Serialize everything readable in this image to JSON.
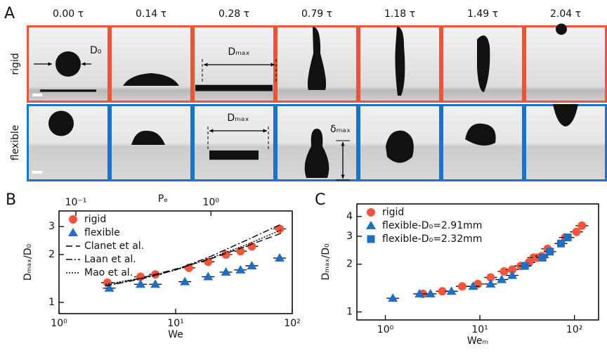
{
  "panel_a": {
    "label": "A",
    "times": [
      "0.00 τ",
      "0.14 τ",
      "0.28 τ",
      "0.79 τ",
      "1.18 τ",
      "1.49 τ",
      "2.04 τ"
    ],
    "rows": [
      "rigid",
      "flexible"
    ],
    "annotations": {
      "d0": "D₀",
      "dmax_rigid": "Dₘₐₓ",
      "dmax_flexible": "Dₘₐₓ",
      "delta_max": "δₘₐₓ"
    }
  },
  "chart_data": [
    {
      "type": "scatter",
      "panel_label": "B",
      "xlabel": "We",
      "x2label": "Pₑ",
      "ylabel": "Dₘₐₓ/D₀",
      "log_x": true,
      "log_y": true,
      "legend": "upper left",
      "xlim": [
        1,
        100
      ],
      "xticks": [
        {
          "value": 1,
          "label": "10⁰"
        },
        {
          "value": 10,
          "label": "10¹"
        },
        {
          "value": 100,
          "label": "10²"
        }
      ],
      "x2lim": [
        0.075,
        4.0
      ],
      "x2ticks": [
        {
          "value": 0.1,
          "label": "10⁻¹"
        },
        {
          "value": 1,
          "label": "10⁰"
        }
      ],
      "ylim": [
        0.85,
        3.76
      ],
      "yticks": [
        1,
        2,
        3
      ],
      "series": [
        {
          "name": "rigid",
          "color": "#f4553c",
          "marker": "circle",
          "x": [
            2.6,
            5,
            6.7,
            13,
            19,
            27,
            36,
            45,
            78
          ],
          "values": [
            1.33,
            1.45,
            1.5,
            1.65,
            1.8,
            2.0,
            2.1,
            2.25,
            2.9
          ]
        },
        {
          "name": "flexible",
          "color": "#1f6fc5",
          "marker": "triangle",
          "x": [
            2.7,
            5,
            6.7,
            12,
            19,
            27,
            36,
            45,
            78
          ],
          "values": [
            1.23,
            1.3,
            1.3,
            1.35,
            1.45,
            1.55,
            1.6,
            1.7,
            1.9
          ]
        },
        {
          "name": "Clanet et al.",
          "color": "#000000",
          "marker": "dashed",
          "x": [
            2.5,
            5,
            10,
            20,
            40,
            80
          ],
          "values": [
            1.27,
            1.42,
            1.62,
            1.88,
            2.25,
            2.72
          ]
        },
        {
          "name": "Laan et al.",
          "color": "#000000",
          "marker": "dashdot",
          "x": [
            2.5,
            5,
            10,
            20,
            40,
            80
          ],
          "values": [
            1.27,
            1.4,
            1.6,
            1.95,
            2.45,
            3.1
          ]
        },
        {
          "name": "Mao et al.",
          "color": "#000000",
          "marker": "dotted",
          "x": [
            2.5,
            5,
            10,
            20,
            40,
            80
          ],
          "values": [
            1.3,
            1.42,
            1.6,
            1.9,
            2.3,
            2.85
          ]
        }
      ]
    },
    {
      "type": "scatter",
      "panel_label": "C",
      "xlabel": "Weₘ",
      "ylabel": "Dₘₐₓ/D₀",
      "log_x": true,
      "log_y": true,
      "legend": "upper left",
      "xlim": [
        0.5,
        180
      ],
      "xticks": [
        {
          "value": 1,
          "label": "10⁰"
        },
        {
          "value": 10,
          "label": "10¹"
        },
        {
          "value": 100,
          "label": "10²"
        }
      ],
      "ylim": [
        0.89,
        4.8
      ],
      "yticks": [
        1,
        2,
        3,
        4
      ],
      "series": [
        {
          "name": "rigid",
          "color": "#f4553c",
          "marker": "circle",
          "x": [
            2.5,
            4,
            6.5,
            9.5,
            13,
            18,
            22,
            27,
            33,
            37,
            40,
            45,
            52,
            80,
            105,
            120
          ],
          "values": [
            1.3,
            1.35,
            1.45,
            1.5,
            1.65,
            1.8,
            1.85,
            1.95,
            2.05,
            2.2,
            2.2,
            2.25,
            2.5,
            2.95,
            3.2,
            3.5
          ]
        },
        {
          "name": "flexible-D₀=2.91mm",
          "color": "#1f6fc5",
          "marker": "triangle",
          "x": [
            1.2,
            2.3,
            3,
            5,
            8.5,
            13,
            17,
            22
          ],
          "values": [
            1.22,
            1.3,
            1.3,
            1.35,
            1.45,
            1.5,
            1.6,
            1.7
          ]
        },
        {
          "name": "flexible-D₀=2.32mm",
          "color": "#1f6fc5",
          "marker": "square",
          "x": [
            30,
            46,
            55,
            72,
            85
          ],
          "values": [
            1.95,
            2.2,
            2.4,
            2.7,
            2.95
          ]
        }
      ]
    }
  ]
}
